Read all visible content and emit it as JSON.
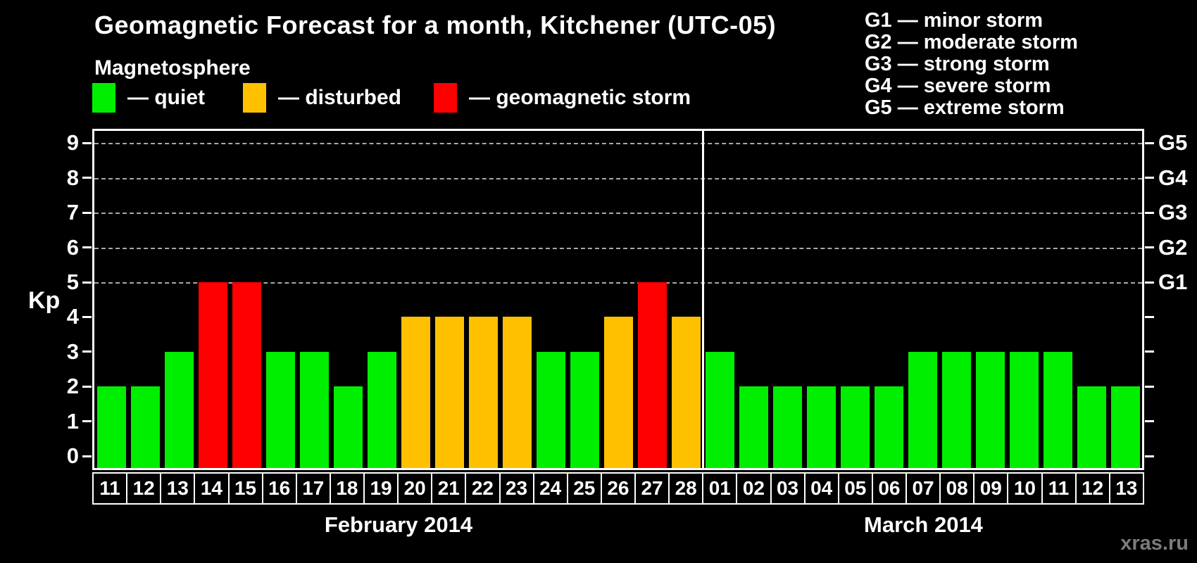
{
  "title": "Geomagnetic Forecast for a month, Kitchener (UTC-05)",
  "legend": {
    "heading": "Magnetosphere",
    "items": [
      {
        "status": "quiet",
        "label": "— quiet",
        "color": "#00ee00"
      },
      {
        "status": "disturbed",
        "label": "— disturbed",
        "color": "#ffc000"
      },
      {
        "status": "storm",
        "label": "— geomagnetic storm",
        "color": "#ff0000"
      }
    ]
  },
  "g_scale_legend": [
    "G1 — minor storm",
    "G2 — moderate storm",
    "G3 — strong storm",
    "G4 — severe storm",
    "G5 — extreme storm"
  ],
  "watermark": "xras.ru",
  "chart_data": {
    "type": "bar",
    "title": "Geomagnetic Forecast for a month, Kitchener (UTC-05)",
    "ylabel": "Kp",
    "ylim": [
      0,
      9
    ],
    "yticks": [
      0,
      1,
      2,
      3,
      4,
      5,
      6,
      7,
      8,
      9
    ],
    "gridlines_at": [
      5,
      6,
      7,
      8,
      9
    ],
    "grid": "dashed horizontal at storm levels only",
    "legend_position": "top",
    "right_axis_labels": [
      {
        "kp": 5,
        "label": "G1"
      },
      {
        "kp": 6,
        "label": "G2"
      },
      {
        "kp": 7,
        "label": "G3"
      },
      {
        "kp": 8,
        "label": "G4"
      },
      {
        "kp": 9,
        "label": "G5"
      }
    ],
    "status_colors": {
      "quiet": "#00ee00",
      "disturbed": "#ffc000",
      "storm": "#ff0000"
    },
    "groups": [
      {
        "label": "February 2014",
        "bars": [
          {
            "day": "11",
            "kp": 2,
            "status": "quiet"
          },
          {
            "day": "12",
            "kp": 2,
            "status": "quiet"
          },
          {
            "day": "13",
            "kp": 3,
            "status": "quiet"
          },
          {
            "day": "14",
            "kp": 5,
            "status": "storm"
          },
          {
            "day": "15",
            "kp": 5,
            "status": "storm"
          },
          {
            "day": "16",
            "kp": 3,
            "status": "quiet"
          },
          {
            "day": "17",
            "kp": 3,
            "status": "quiet"
          },
          {
            "day": "18",
            "kp": 2,
            "status": "quiet"
          },
          {
            "day": "19",
            "kp": 3,
            "status": "quiet"
          },
          {
            "day": "20",
            "kp": 4,
            "status": "disturbed"
          },
          {
            "day": "21",
            "kp": 4,
            "status": "disturbed"
          },
          {
            "day": "22",
            "kp": 4,
            "status": "disturbed"
          },
          {
            "day": "23",
            "kp": 4,
            "status": "disturbed"
          },
          {
            "day": "24",
            "kp": 3,
            "status": "quiet"
          },
          {
            "day": "25",
            "kp": 3,
            "status": "quiet"
          },
          {
            "day": "26",
            "kp": 4,
            "status": "disturbed"
          },
          {
            "day": "27",
            "kp": 5,
            "status": "storm"
          },
          {
            "day": "28",
            "kp": 4,
            "status": "disturbed"
          }
        ]
      },
      {
        "label": "March 2014",
        "bars": [
          {
            "day": "01",
            "kp": 3,
            "status": "quiet"
          },
          {
            "day": "02",
            "kp": 2,
            "status": "quiet"
          },
          {
            "day": "03",
            "kp": 2,
            "status": "quiet"
          },
          {
            "day": "04",
            "kp": 2,
            "status": "quiet"
          },
          {
            "day": "05",
            "kp": 2,
            "status": "quiet"
          },
          {
            "day": "06",
            "kp": 2,
            "status": "quiet"
          },
          {
            "day": "07",
            "kp": 3,
            "status": "quiet"
          },
          {
            "day": "08",
            "kp": 3,
            "status": "quiet"
          },
          {
            "day": "09",
            "kp": 3,
            "status": "quiet"
          },
          {
            "day": "10",
            "kp": 3,
            "status": "quiet"
          },
          {
            "day": "11",
            "kp": 3,
            "status": "quiet"
          },
          {
            "day": "12",
            "kp": 2,
            "status": "quiet"
          },
          {
            "day": "13",
            "kp": 2,
            "status": "quiet"
          }
        ]
      }
    ]
  }
}
